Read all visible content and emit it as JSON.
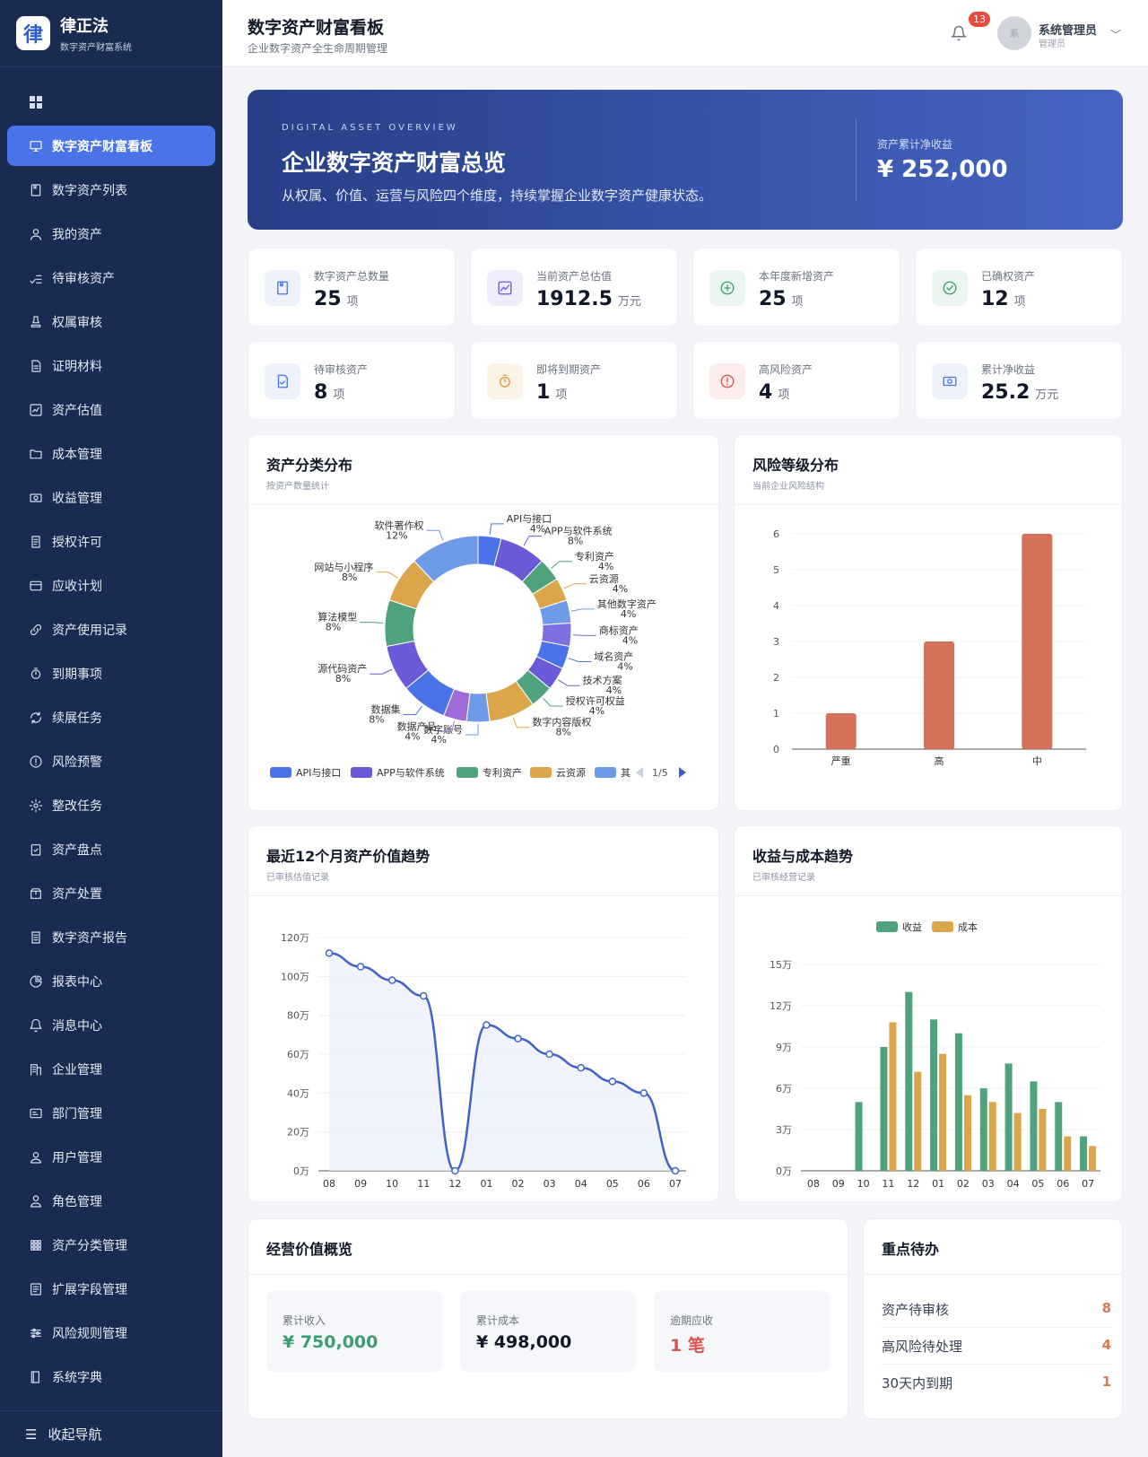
{
  "brand": {
    "logo_char": "律",
    "title": "律正法",
    "subtitle": "数字资产财富系统"
  },
  "nav": [
    {
      "label": "数字资产财富看板",
      "icon": "monitor-icon",
      "active": true
    },
    {
      "label": "数字资产列表",
      "icon": "archive-icon"
    },
    {
      "label": "我的资产",
      "icon": "user-icon"
    },
    {
      "label": "待审核资产",
      "icon": "check-list-icon"
    },
    {
      "label": "权属审核",
      "icon": "stamp-icon"
    },
    {
      "label": "证明材料",
      "icon": "document-icon"
    },
    {
      "label": "资产估值",
      "icon": "line-chart-icon"
    },
    {
      "label": "成本管理",
      "icon": "folder-icon"
    },
    {
      "label": "收益管理",
      "icon": "money-icon"
    },
    {
      "label": "授权许可",
      "icon": "license-icon"
    },
    {
      "label": "应收计划",
      "icon": "credit-card-icon"
    },
    {
      "label": "资产使用记录",
      "icon": "link-icon"
    },
    {
      "label": "到期事项",
      "icon": "timer-icon"
    },
    {
      "label": "续展任务",
      "icon": "refresh-icon"
    },
    {
      "label": "风险预警",
      "icon": "alert-circle-icon"
    },
    {
      "label": "整改任务",
      "icon": "gear-icon"
    },
    {
      "label": "资产盘点",
      "icon": "clipboard-check-icon"
    },
    {
      "label": "资产处置",
      "icon": "box-icon"
    },
    {
      "label": "数字资产报告",
      "icon": "report-icon"
    },
    {
      "label": "报表中心",
      "icon": "pie-chart-icon"
    },
    {
      "label": "消息中心",
      "icon": "bell-icon"
    },
    {
      "label": "企业管理",
      "icon": "building-icon"
    },
    {
      "label": "部门管理",
      "icon": "id-card-icon"
    },
    {
      "label": "用户管理",
      "icon": "person-icon"
    },
    {
      "label": "角色管理",
      "icon": "role-icon"
    },
    {
      "label": "资产分类管理",
      "icon": "grid-icon"
    },
    {
      "label": "扩展字段管理",
      "icon": "form-icon"
    },
    {
      "label": "风险规则管理",
      "icon": "sliders-icon"
    },
    {
      "label": "系统字典",
      "icon": "book-icon"
    }
  ],
  "collapse_label": "收起导航",
  "header": {
    "title": "数字资产财富看板",
    "subtitle": "企业数字资产全生命周期管理",
    "notif_count": "13",
    "avatar_char": "系",
    "user_name": "系统管理员",
    "user_role": "管理员"
  },
  "hero": {
    "kicker": "DIGITAL ASSET OVERVIEW",
    "title": "企业数字资产财富总览",
    "desc": "从权属、价值、运营与风险四个维度，持续掌握企业数字资产健康状态。",
    "stat_label": "资产累计净收益",
    "stat_value": "¥ 252,000"
  },
  "stats": [
    {
      "label": "数字资产总数量",
      "value": "25",
      "unit": "项",
      "icon": "archive-icon",
      "color": "#4a73e8",
      "bg": "#edf2fd"
    },
    {
      "label": "当前资产总估值",
      "value": "1912.5",
      "unit": "万元",
      "icon": "trend-icon",
      "color": "#6b5ad8",
      "bg": "#efedfb"
    },
    {
      "label": "本年度新增资产",
      "value": "25",
      "unit": "项",
      "icon": "plus-circle-icon",
      "color": "#3f9b73",
      "bg": "#ebf6f0"
    },
    {
      "label": "已确权资产",
      "value": "12",
      "unit": "项",
      "icon": "check-circle-icon",
      "color": "#3f9b73",
      "bg": "#ebf6f0"
    },
    {
      "label": "待审核资产",
      "value": "8",
      "unit": "项",
      "icon": "document-check-icon",
      "color": "#4a73e8",
      "bg": "#edf2fd"
    },
    {
      "label": "即将到期资产",
      "value": "1",
      "unit": "项",
      "icon": "timer-icon",
      "color": "#d99a3c",
      "bg": "#fcf3e6"
    },
    {
      "label": "高风险资产",
      "value": "4",
      "unit": "项",
      "icon": "alert-circle-icon",
      "color": "#d9534f",
      "bg": "#fcecec"
    },
    {
      "label": "累计净收益",
      "value": "25.2",
      "unit": "万元",
      "icon": "money-icon",
      "color": "#4a73e8",
      "bg": "#edf2fd"
    }
  ],
  "cards": {
    "category": {
      "title": "资产分类分布",
      "subtitle": "按资产数量统计"
    },
    "risk": {
      "title": "风险等级分布",
      "subtitle": "当前企业风险结构"
    },
    "value_trend": {
      "title": "最近12个月资产价值趋势",
      "subtitle": "已审核估值记录"
    },
    "income_cost": {
      "title": "收益与成本趋势",
      "subtitle": "已审核经营记录"
    },
    "operation": {
      "title": "经营价值概览",
      "items": [
        {
          "label": "累计收入",
          "value": "¥ 750,000",
          "color": "#3f9b73"
        },
        {
          "label": "累计成本",
          "value": "¥ 498,000",
          "color": "#111827"
        },
        {
          "label": "逾期应收",
          "value": "1 笔",
          "color": "#d9534f"
        }
      ]
    },
    "todo": {
      "title": "重点待办",
      "items": [
        {
          "label": "资产待审核",
          "value": "8"
        },
        {
          "label": "高风险待处理",
          "value": "4"
        },
        {
          "label": "30天内到期",
          "value": "1"
        }
      ]
    }
  },
  "chart_data": [
    {
      "type": "pie",
      "title": "资产分类分布",
      "slices": [
        {
          "name": "API与接口",
          "value": 4,
          "pct": "4%",
          "color": "#4a73e8"
        },
        {
          "name": "APP与软件系统",
          "value": 8,
          "pct": "8%",
          "color": "#6b5ad8"
        },
        {
          "name": "专利资产",
          "value": 4,
          "pct": "4%",
          "color": "#4fa37c"
        },
        {
          "name": "云资源",
          "value": 4,
          "pct": "4%",
          "color": "#dba64a"
        },
        {
          "name": "其他数字资产",
          "value": 4,
          "pct": "4%",
          "color": "#6e9ae8"
        },
        {
          "name": "商标资产",
          "value": 4,
          "pct": "4%",
          "color": "#7c6fe0"
        },
        {
          "name": "域名资产",
          "value": 4,
          "pct": "4%",
          "color": "#4a73e8"
        },
        {
          "name": "技术方案",
          "value": 4,
          "pct": "4%",
          "color": "#6b5ad8"
        },
        {
          "name": "授权许可权益",
          "value": 4,
          "pct": "4%",
          "color": "#4fa37c"
        },
        {
          "name": "数字内容版权",
          "value": 8,
          "pct": "8%",
          "color": "#dba64a"
        },
        {
          "name": "数字账号",
          "value": 4,
          "pct": "4%",
          "color": "#6e9ae8"
        },
        {
          "name": "数据产品",
          "value": 4,
          "pct": "4%",
          "color": "#9d6ad8"
        },
        {
          "name": "数据集",
          "value": 8,
          "pct": "8%",
          "color": "#4a73e8"
        },
        {
          "name": "源代码资产",
          "value": 8,
          "pct": "8%",
          "color": "#6b5ad8"
        },
        {
          "name": "算法模型",
          "value": 8,
          "pct": "8%",
          "color": "#4fa37c"
        },
        {
          "name": "网站与小程序",
          "value": 8,
          "pct": "8%",
          "color": "#dba64a"
        },
        {
          "name": "软件著作权",
          "value": 12,
          "pct": "12%",
          "color": "#6e9ae8"
        }
      ],
      "legend": [
        "API与接口",
        "APP与软件系统",
        "专利资产",
        "云资源",
        "其"
      ],
      "legend_page": "1/5"
    },
    {
      "type": "bar",
      "title": "风险等级分布",
      "categories": [
        "严重",
        "高",
        "中"
      ],
      "values": [
        1,
        3,
        6
      ],
      "ylim": [
        0,
        6
      ],
      "yticks": [
        0,
        1,
        2,
        3,
        4,
        5,
        6
      ],
      "color": "#d4715a"
    },
    {
      "type": "area",
      "title": "最近12个月资产价值趋势",
      "categories": [
        "08",
        "09",
        "10",
        "11",
        "12",
        "01",
        "02",
        "03",
        "04",
        "05",
        "06",
        "07"
      ],
      "values": [
        112,
        105,
        98,
        90,
        0,
        75,
        68,
        60,
        53,
        46,
        40,
        0
      ],
      "unit": "万",
      "ylim": [
        0,
        120
      ],
      "yticks": [
        "0万",
        "20万",
        "40万",
        "60万",
        "80万",
        "100万",
        "120万"
      ]
    },
    {
      "type": "bar",
      "title": "收益与成本趋势",
      "categories": [
        "08",
        "09",
        "10",
        "11",
        "12",
        "01",
        "02",
        "03",
        "04",
        "05",
        "06",
        "07"
      ],
      "series": [
        {
          "name": "收益",
          "values": [
            0,
            0,
            5,
            9,
            13,
            11,
            10,
            6,
            7.8,
            6.5,
            5,
            2.5
          ],
          "color": "#4fa37c"
        },
        {
          "name": "成本",
          "values": [
            0,
            0,
            0,
            10.8,
            7.2,
            8.5,
            5.5,
            5,
            4.2,
            4.5,
            2.5,
            1.8
          ],
          "color": "#dba64a"
        }
      ],
      "ylim": [
        0,
        15
      ],
      "yticks": [
        "0万",
        "3万",
        "6万",
        "9万",
        "12万",
        "15万"
      ]
    }
  ]
}
